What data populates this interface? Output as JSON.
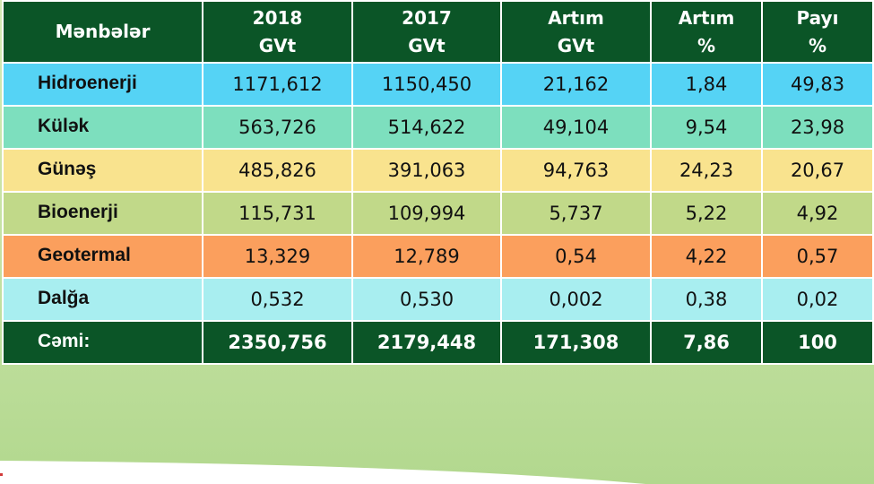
{
  "header": {
    "sources": "Mənbələr",
    "col2018": [
      "2018",
      "GVt"
    ],
    "col2017": [
      "2017",
      "GVt"
    ],
    "growth_gvt": [
      "Artım",
      "GVt"
    ],
    "growth_pct": [
      "Artım",
      "%"
    ],
    "share_pct": [
      "Payı",
      "%"
    ]
  },
  "colors": {
    "header": "#0b5527",
    "hidro": "#55d3f5",
    "kulek": "#7ddfbe",
    "gunes": "#f9e38e",
    "bio": "#c1d989",
    "geo": "#fb9f5d",
    "dalga": "#a8eef0"
  },
  "rows": [
    {
      "name": "Hidroenerji",
      "v2018": "1171,612",
      "v2017": "1150,450",
      "gvt": "21,162",
      "pct": "1,84",
      "share": "49,83"
    },
    {
      "name": "Külək",
      "v2018": "563,726",
      "v2017": "514,622",
      "gvt": "49,104",
      "pct": "9,54",
      "share": "23,98"
    },
    {
      "name": "Günəş",
      "v2018": "485,826",
      "v2017": "391,063",
      "gvt": "94,763",
      "pct": "24,23",
      "share": "20,67"
    },
    {
      "name": "Bioenerji",
      "v2018": "115,731",
      "v2017": "109,994",
      "gvt": "5,737",
      "pct": "5,22",
      "share": "4,92"
    },
    {
      "name": "Geotermal",
      "v2018": "13,329",
      "v2017": "12,789",
      "gvt": "0,54",
      "pct": "4,22",
      "share": "0,57"
    },
    {
      "name": "Dalğa",
      "v2018": "0,532",
      "v2017": "0,530",
      "gvt": "0,002",
      "pct": "0,38",
      "share": "0,02"
    }
  ],
  "total": {
    "name": "Cəmi:",
    "v2018": "2350,756",
    "v2017": "2179,448",
    "gvt": "171,308",
    "pct": "7,86",
    "share": "100"
  }
}
